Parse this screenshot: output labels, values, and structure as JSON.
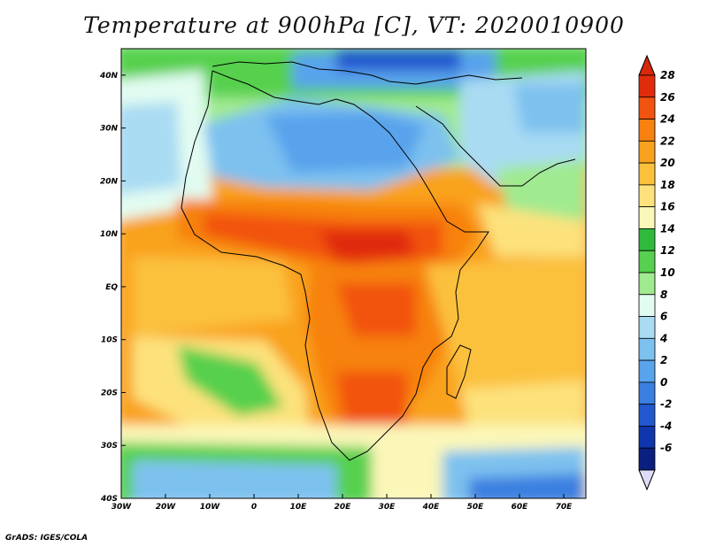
{
  "title": "Temperature at 900hPa [C], VT: 2020010900",
  "credit": "GrADS: IGES/COLA",
  "map": {
    "lat_range": [
      -40,
      45
    ],
    "lon_range": [
      -30,
      75
    ],
    "lat_ticks": [
      {
        "value": 40,
        "label": "40N"
      },
      {
        "value": 30,
        "label": "30N"
      },
      {
        "value": 20,
        "label": "20N"
      },
      {
        "value": 10,
        "label": "10N"
      },
      {
        "value": 0,
        "label": "EQ"
      },
      {
        "value": -10,
        "label": "10S"
      },
      {
        "value": -20,
        "label": "20S"
      },
      {
        "value": -30,
        "label": "30S"
      },
      {
        "value": -40,
        "label": "40S"
      }
    ],
    "lon_ticks": [
      {
        "value": -30,
        "label": "30W"
      },
      {
        "value": -20,
        "label": "20W"
      },
      {
        "value": -10,
        "label": "10W"
      },
      {
        "value": 0,
        "label": "0"
      },
      {
        "value": 10,
        "label": "10E"
      },
      {
        "value": 20,
        "label": "20E"
      },
      {
        "value": 30,
        "label": "30E"
      },
      {
        "value": 40,
        "label": "40E"
      },
      {
        "value": 50,
        "label": "50E"
      },
      {
        "value": 60,
        "label": "60E"
      },
      {
        "value": 70,
        "label": "70E"
      }
    ]
  },
  "colorbar": {
    "levels": [
      {
        "label": "28",
        "color": "#e02c0c"
      },
      {
        "label": "26",
        "color": "#f25310"
      },
      {
        "label": "24",
        "color": "#f7820f"
      },
      {
        "label": "22",
        "color": "#f9a21f"
      },
      {
        "label": "20",
        "color": "#fbc13d"
      },
      {
        "label": "18",
        "color": "#fde27c"
      },
      {
        "label": "16",
        "color": "#fbf7b8"
      },
      {
        "label": "14",
        "color": "#2fba3c"
      },
      {
        "label": "12",
        "color": "#56d04e"
      },
      {
        "label": "10",
        "color": "#a0ea90"
      },
      {
        "label": "8",
        "color": "#e2fcf1"
      },
      {
        "label": "6",
        "color": "#a9dbf3"
      },
      {
        "label": "4",
        "color": "#7dc1ef"
      },
      {
        "label": "2",
        "color": "#58a3ec"
      },
      {
        "label": "0",
        "color": "#3b7fe0"
      },
      {
        "label": "-2",
        "color": "#2259cf"
      },
      {
        "label": "-4",
        "color": "#0f36ac"
      },
      {
        "label": "-6",
        "color": "#0b1f7e"
      }
    ],
    "top_arrow_color": "#d7280a",
    "bottom_arrow_color": "#dcdcf8"
  }
}
